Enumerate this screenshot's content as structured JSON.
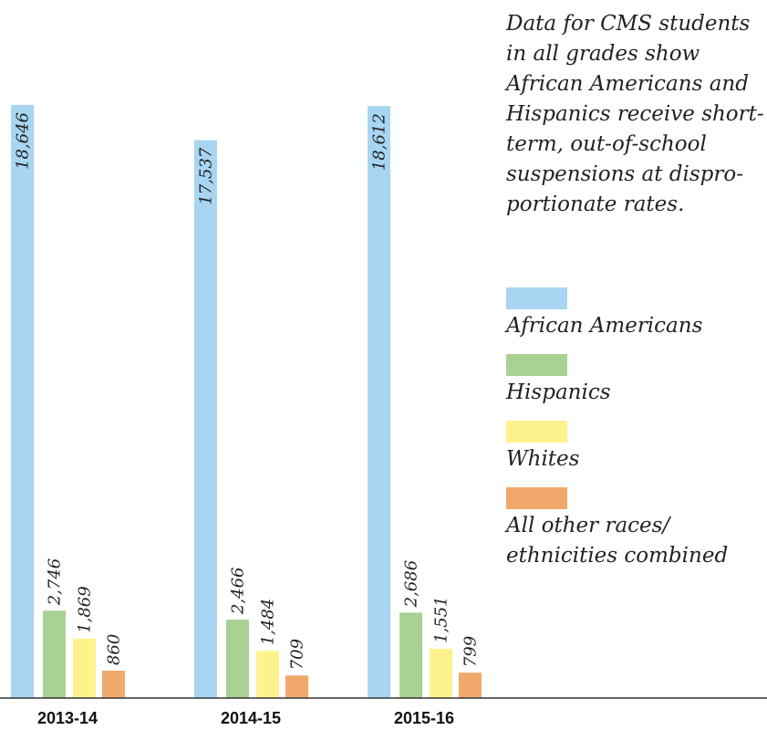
{
  "caption": "Data for CMS students in all grades show African Americans and Hispanics receive short-term, out-of-school suspensions at dispro-portionate rates.",
  "chart_data": {
    "type": "bar",
    "categories": [
      "2013-14",
      "2014-15",
      "2015-16"
    ],
    "series": [
      {
        "name": "African Americans",
        "color": "#a8d5f2",
        "values": [
          18646,
          17537,
          18612
        ],
        "labels": [
          "18,646",
          "17,537",
          "18,612"
        ]
      },
      {
        "name": "Hispanics",
        "color": "#a9d194",
        "values": [
          2746,
          2466,
          2686
        ],
        "labels": [
          "2,746",
          "2,466",
          "2,686"
        ]
      },
      {
        "name": "Whites",
        "color": "#fef28d",
        "values": [
          1869,
          1484,
          1551
        ],
        "labels": [
          "1,869",
          "1,484",
          "1,551"
        ]
      },
      {
        "name": "All other races/ ethnicities combined",
        "color": "#f1a96b",
        "values": [
          860,
          709,
          799
        ],
        "labels": [
          "860",
          "709",
          "799"
        ]
      }
    ],
    "title": "",
    "xlabel": "",
    "ylabel": "",
    "ylim": [
      0,
      18646
    ],
    "grid": false,
    "legend_position": "right"
  }
}
